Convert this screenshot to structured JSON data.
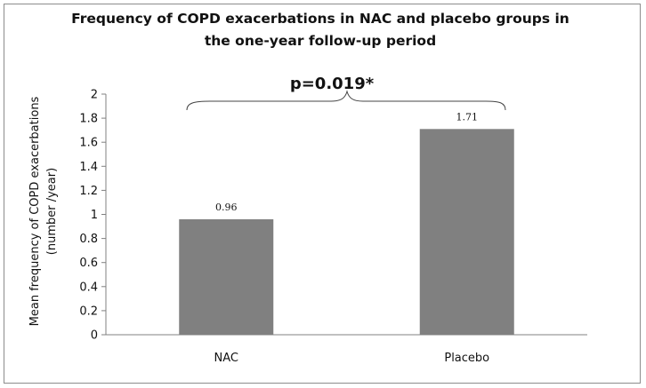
{
  "chart_data": {
    "type": "bar",
    "title": "Frequency of COPD exacerbations in NAC and placebo groups in the one-year follow-up period",
    "categories": [
      "NAC",
      "Placebo"
    ],
    "values": [
      0.96,
      1.71
    ],
    "data_labels": [
      "0.96",
      "1.71"
    ],
    "xlabel": "",
    "ylabel_line1": "Mean frequency of COPD exacerbations",
    "ylabel_line2": "(number /year)",
    "ylim": [
      0,
      2
    ],
    "yticks": [
      "0",
      "0.2",
      "0.4",
      "0.6",
      "0.8",
      "1",
      "1.2",
      "1.4",
      "1.6",
      "1.8",
      "2"
    ],
    "grid": false,
    "legend": "none",
    "bar_color": "#808080",
    "annotation": "p=0.019*"
  }
}
